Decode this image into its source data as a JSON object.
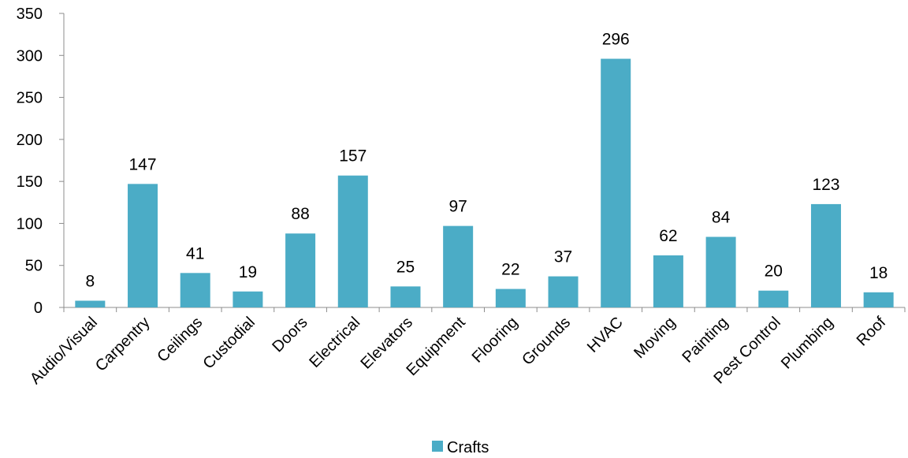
{
  "chart_data": {
    "type": "bar",
    "categories": [
      "Audio/Visual",
      "Carpentry",
      "Ceilings",
      "Custodial",
      "Doors",
      "Electrical",
      "Elevators",
      "Equipment",
      "Flooring",
      "Grounds",
      "HVAC",
      "Moving",
      "Painting",
      "Pest Control",
      "Plumbing",
      "Roof"
    ],
    "series": [
      {
        "name": "Crafts",
        "color": "#4bacc6",
        "values": [
          8,
          147,
          41,
          19,
          88,
          157,
          25,
          97,
          22,
          37,
          296,
          62,
          84,
          20,
          123,
          18
        ]
      }
    ],
    "ylim": [
      0,
      350
    ],
    "yticks": [
      0,
      50,
      100,
      150,
      200,
      250,
      300,
      350
    ],
    "grid": false,
    "data_labels": true,
    "legend_position": "bottom",
    "xlabel": "",
    "ylabel": "",
    "title": ""
  }
}
